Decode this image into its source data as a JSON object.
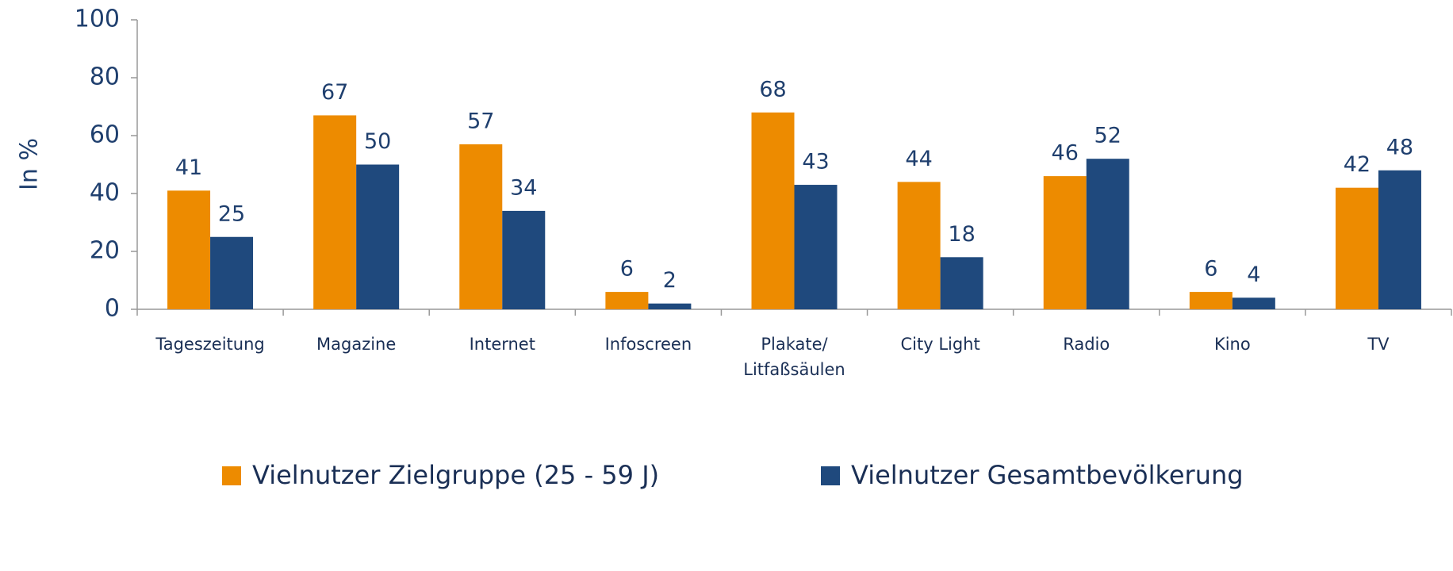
{
  "chart_data": {
    "type": "bar",
    "y_axis_label": "In %",
    "categories": [
      "Tageszeitung",
      "Magazine",
      "Internet",
      "Infoscreen",
      "Plakate/\nLitfaßsäulen",
      "City Light",
      "Radio",
      "Kino",
      "TV"
    ],
    "series": [
      {
        "name": "Vielnutzer Zielgruppe (25 - 59 J)",
        "color": "#ed8b00",
        "values": [
          41,
          67,
          57,
          6,
          68,
          44,
          46,
          6,
          42
        ]
      },
      {
        "name": "Vielnutzer Gesamtbevölkerung",
        "color": "#1f497d",
        "values": [
          25,
          50,
          34,
          2,
          43,
          18,
          52,
          4,
          48
        ]
      }
    ],
    "ylim": [
      0,
      100
    ],
    "yticks": [
      0,
      20,
      40,
      60,
      80,
      100
    ],
    "grid": false
  }
}
